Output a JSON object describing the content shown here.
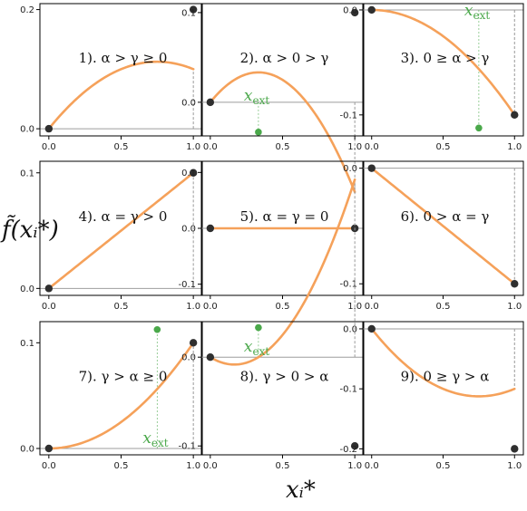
{
  "figure": {
    "ylabel": "f̃(xᵢ*)",
    "xlabel": "xᵢ*"
  },
  "colors": {
    "curve": "#f5a15a",
    "endpoint": "#2f2f2f",
    "extremum": "#4aa84a",
    "zero_line": "#9e9e9e",
    "frame": "#000000"
  },
  "chart_data": [
    {
      "type": "line",
      "label": "1). α > γ ≥ 0",
      "label_pos": "center",
      "alpha": 0.3,
      "gamma": 0.1,
      "xlim": [
        0,
        1
      ],
      "ylim": [
        -0.012,
        0.21
      ],
      "xticks": [
        "0.0",
        "0.5",
        "1.0"
      ],
      "yticks": [
        0.0,
        0.2
      ],
      "ytick_labels": [
        "0.0",
        "0.2"
      ],
      "points": [
        [
          0,
          0
        ],
        [
          1,
          0.2
        ]
      ],
      "extremum": null
    },
    {
      "type": "line",
      "label": "2). α > 0 > γ",
      "label_pos": "center",
      "alpha": 0.2,
      "gamma": -0.1,
      "xlim": [
        0,
        1
      ],
      "ylim": [
        -0.0375,
        0.11
      ],
      "xticks": [
        "0.0",
        "0.5",
        "1.0"
      ],
      "yticks": [
        0.0,
        0.1
      ],
      "ytick_labels": [
        "0.0",
        "0.1"
      ],
      "points": [
        [
          0,
          0
        ],
        [
          1,
          0.1
        ]
      ],
      "extremum": {
        "x": 0.333,
        "y": -0.0333,
        "label": "x",
        "sub": "ext",
        "label_side": "above"
      }
    },
    {
      "type": "line",
      "label": "3). 0 ≥ α > γ",
      "label_pos": "center",
      "alpha": 0.0,
      "gamma": -0.1,
      "xlim": [
        0,
        1
      ],
      "ylim": [
        -0.12,
        0.006
      ],
      "xticks": [
        "0.0",
        "0.5",
        "1.0"
      ],
      "yticks": [
        0.0,
        -0.1
      ],
      "ytick_labels": [
        "0.0",
        "-0.1"
      ],
      "points": [
        [
          0,
          0
        ],
        [
          1,
          -0.1
        ]
      ],
      "extremum": {
        "x": 0.75,
        "y": -0.1125,
        "label": "x",
        "sub": "ext",
        "label_side": "above"
      }
    },
    {
      "type": "line",
      "label": "4). α = γ > 0",
      "label_pos": "center",
      "alpha": 0.1,
      "gamma": 0.1,
      "xlim": [
        0,
        1
      ],
      "ylim": [
        -0.006,
        0.11
      ],
      "xticks": [
        "0.0",
        "0.5",
        "1.0"
      ],
      "yticks": [
        0.0,
        0.1
      ],
      "ytick_labels": [
        "0.0",
        "0.1"
      ],
      "points": [
        [
          0,
          0
        ],
        [
          1,
          0.1
        ]
      ],
      "extremum": null
    },
    {
      "type": "line",
      "label": "5). α = γ = 0",
      "label_pos": "center",
      "alpha": 0.0,
      "gamma": 0.0,
      "xlim": [
        0,
        1
      ],
      "ylim": [
        -0.12,
        0.12
      ],
      "xticks": [
        "0.0",
        "0.5",
        "1.0"
      ],
      "yticks": [
        0.1,
        0.0,
        -0.1
      ],
      "ytick_labels": [
        "0.1",
        "0.0",
        "-0.1"
      ],
      "points": [
        [
          0,
          0
        ],
        [
          1,
          0
        ]
      ],
      "extremum": null
    },
    {
      "type": "line",
      "label": "6). 0 > α = γ",
      "label_pos": "center",
      "alpha": -0.1,
      "gamma": -0.1,
      "xlim": [
        0,
        1
      ],
      "ylim": [
        -0.11,
        0.006
      ],
      "xticks": [
        "0.0",
        "0.5",
        "1.0"
      ],
      "yticks": [
        0.0,
        -0.1
      ],
      "ytick_labels": [
        "0.0",
        "-0.1"
      ],
      "points": [
        [
          0,
          0
        ],
        [
          1,
          -0.1
        ]
      ],
      "extremum": null
    },
    {
      "type": "line",
      "label": "7). γ > α ≥ 0",
      "label_pos": "center",
      "alpha": 0.0,
      "gamma": 0.1,
      "xlim": [
        0,
        1
      ],
      "ylim": [
        -0.006,
        0.12
      ],
      "xticks": [
        "0.0",
        "0.5",
        "1.0"
      ],
      "yticks": [
        0.0,
        0.1
      ],
      "ytick_labels": [
        "0.0",
        "0.1"
      ],
      "points": [
        [
          0,
          0
        ],
        [
          1,
          0.1
        ]
      ],
      "extremum": {
        "x": 0.75,
        "y": 0.1125,
        "label": "x",
        "sub": "ext",
        "label_side": "below"
      }
    },
    {
      "type": "line",
      "label": "8). γ > 0 > α",
      "label_pos": "center",
      "alpha": -0.1,
      "gamma": 0.2,
      "xlim": [
        0,
        1
      ],
      "ylim": [
        -0.11,
        0.04
      ],
      "xticks": [
        "0.0",
        "0.5",
        "1.0"
      ],
      "yticks": [
        0.0,
        -0.1
      ],
      "ytick_labels": [
        "0.0",
        "-0.1"
      ],
      "points": [
        [
          0,
          0
        ],
        [
          1,
          -0.1
        ]
      ],
      "extremum": {
        "x": 0.333,
        "y": 0.0333,
        "label": "x",
        "sub": "ext",
        "label_side": "below"
      }
    },
    {
      "type": "line",
      "label": "9). 0 ≥ γ > α",
      "label_pos": "center",
      "alpha": -0.3,
      "gamma": -0.1,
      "xlim": [
        0,
        1
      ],
      "ylim": [
        -0.21,
        0.012
      ],
      "xticks": [
        "0.0",
        "0.5",
        "1.0"
      ],
      "yticks": [
        0.0,
        -0.1,
        -0.2
      ],
      "ytick_labels": [
        "0.0",
        "-0.1",
        "-0.2"
      ],
      "points": [
        [
          0,
          0
        ],
        [
          1,
          -0.2
        ]
      ],
      "extremum": null
    }
  ]
}
